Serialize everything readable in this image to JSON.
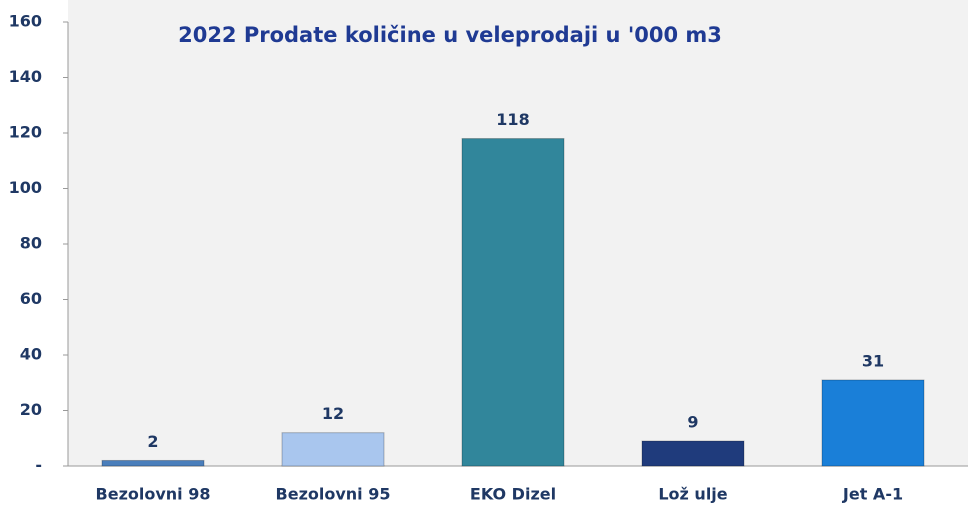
{
  "chart_data": {
    "type": "bar",
    "title": "2022 Prodate količine u veleprodaji u  '000 m3",
    "categories": [
      "Bezolovni 98",
      "Bezolovni 95",
      "EKO Dizel",
      "Lož ulje",
      "Jet A-1"
    ],
    "values": [
      2,
      12,
      118,
      9,
      31
    ],
    "colors": [
      "#4a7ebb",
      "#a9c6ee",
      "#31869b",
      "#1f3b7c",
      "#1a7fd8"
    ],
    "ylim": [
      0,
      160
    ],
    "yticks": [
      {
        "value": 0,
        "label": "-"
      },
      20,
      40,
      60,
      80,
      100,
      120,
      140,
      160
    ],
    "grid": false
  }
}
